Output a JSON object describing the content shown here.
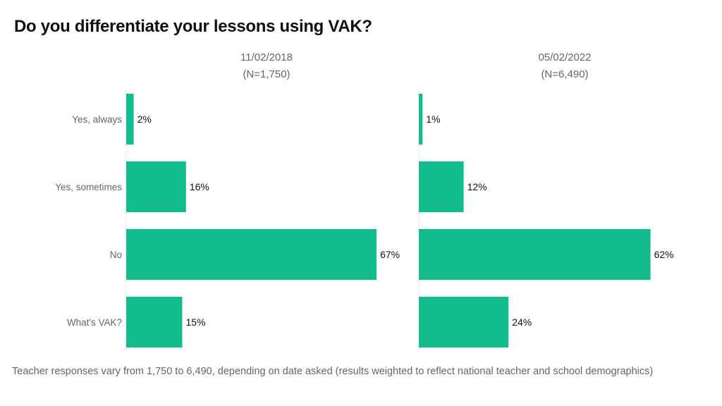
{
  "chart_data": {
    "type": "bar",
    "orientation": "horizontal",
    "title": "Do you differentiate your lessons using VAK?",
    "categories": [
      "Yes, always",
      "Yes, sometimes",
      "No",
      "What's VAK?"
    ],
    "panels": [
      {
        "date": "11/02/2018",
        "n_label": "(N=1,750)",
        "values": [
          2,
          16,
          67,
          15
        ],
        "labels": [
          "2%",
          "16%",
          "67%",
          "15%"
        ]
      },
      {
        "date": "05/02/2022",
        "n_label": "(N=6,490)",
        "values": [
          1,
          12,
          62,
          24
        ],
        "labels": [
          "1%",
          "12%",
          "62%",
          "24%"
        ]
      }
    ],
    "xlim": [
      0,
      100
    ],
    "color": "#13bc8c",
    "footnote": "Teacher responses vary from 1,750 to 6,490, depending on date asked (results weighted to reflect national teacher and school demographics)"
  }
}
